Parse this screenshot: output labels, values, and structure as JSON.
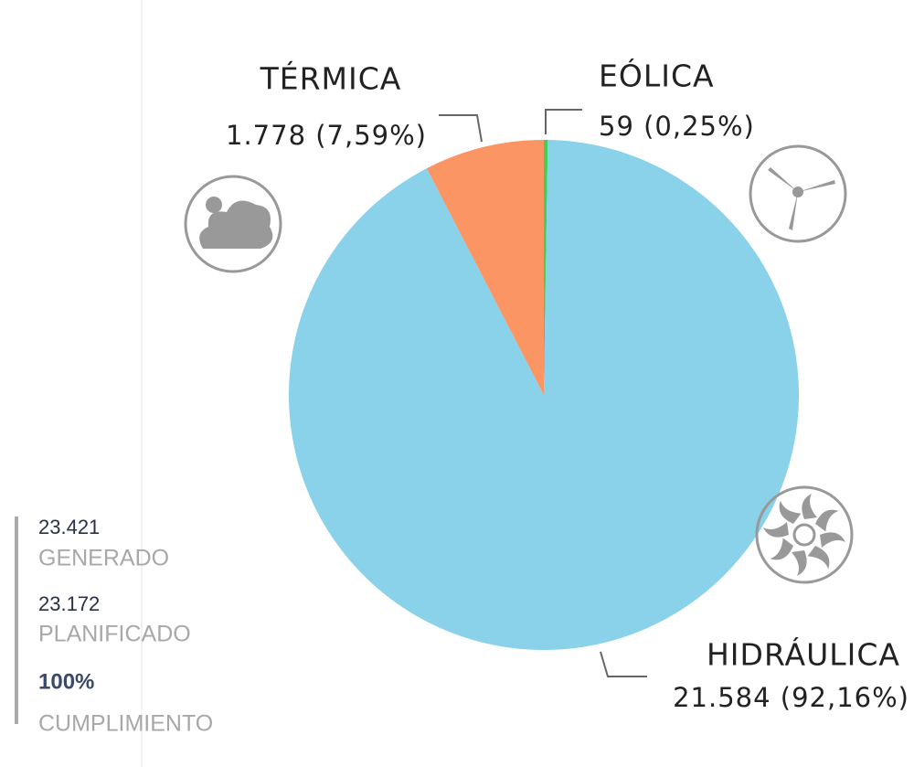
{
  "chart_data": {
    "type": "pie",
    "categories": [
      "EÓLICA",
      "HIDRÁULICA",
      "TÉRMICA"
    ],
    "values": [
      59,
      21584,
      1778
    ],
    "value_labels": [
      "59 (0,25%)",
      "21.584 (92,16%)",
      "1.778 (7,59%)"
    ],
    "colors": [
      "#3fcf5a",
      "#8ad1ea",
      "#fb9563"
    ]
  },
  "summary": [
    {
      "value": "23.421",
      "label": "GENERADO"
    },
    {
      "value": "23.172",
      "label": "PLANIFICADO"
    },
    {
      "value": "100%",
      "label": "CUMPLIMIENTO"
    }
  ]
}
